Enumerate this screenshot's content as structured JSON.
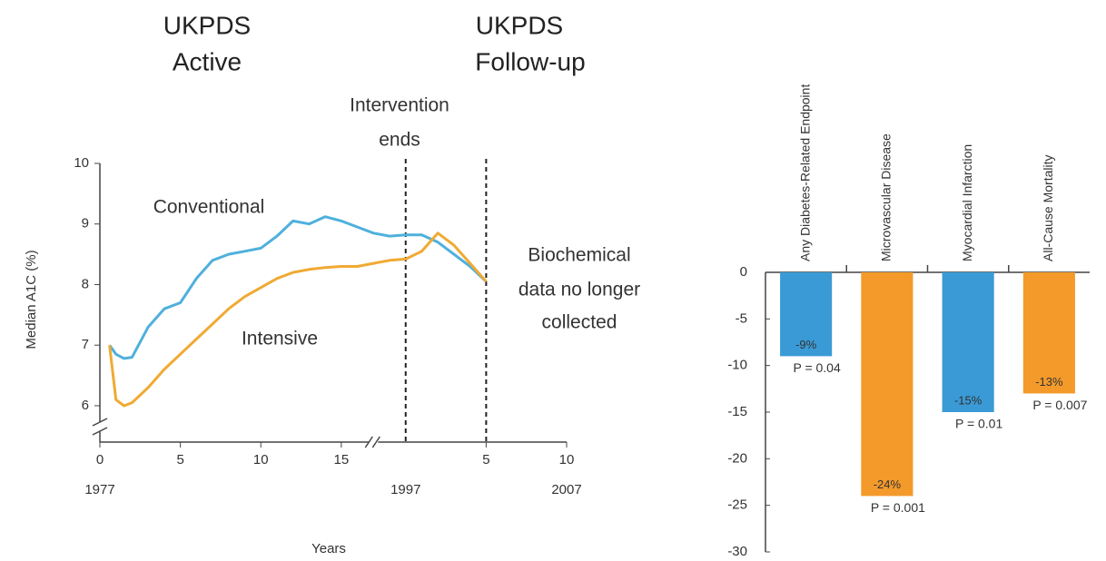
{
  "chart_data": [
    {
      "type": "line",
      "annotations": [
        [
          "UKPDS",
          "Active"
        ],
        [
          "UKPDS",
          "Follow-up"
        ],
        [
          "Intervention",
          "ends"
        ],
        [
          "Biochemical",
          "data no longer",
          "collected"
        ]
      ],
      "y_label": "Median A1C (%)",
      "x_label": "Years",
      "x": [
        0.6,
        1,
        1.5,
        2,
        3,
        4,
        5,
        6,
        7,
        8,
        9,
        10,
        11,
        12,
        13,
        14,
        15,
        16,
        17,
        18,
        19,
        20,
        21,
        22,
        23,
        24
      ],
      "series": [
        {
          "name": "Conventional",
          "color": "#4fb0dc",
          "values": [
            7.0,
            6.85,
            6.78,
            6.8,
            7.3,
            7.6,
            7.7,
            8.1,
            8.4,
            8.5,
            8.55,
            8.6,
            8.8,
            9.05,
            9.0,
            9.12,
            9.05,
            8.95,
            8.85,
            8.8,
            8.82,
            8.82,
            8.7,
            8.5,
            8.3,
            8.05
          ]
        },
        {
          "name": "Intensive",
          "color": "#f0aa33",
          "values": [
            7.0,
            6.1,
            6.0,
            6.05,
            6.3,
            6.6,
            6.85,
            7.1,
            7.35,
            7.6,
            7.8,
            7.95,
            8.1,
            8.2,
            8.25,
            8.28,
            8.3,
            8.3,
            8.35,
            8.4,
            8.42,
            8.55,
            8.85,
            8.65,
            8.35,
            8.05
          ]
        }
      ],
      "vlines": [
        19,
        24
      ],
      "xlim": [
        0,
        29
      ],
      "xticks": [
        0,
        5,
        10,
        15,
        {
          "value": 24,
          "label": "5"
        },
        {
          "value": 29,
          "label": "10"
        }
      ],
      "xticks_secondary": [
        {
          "value": 0,
          "label": "1977"
        },
        {
          "value": 19,
          "label": "1997"
        },
        {
          "value": 29,
          "label": "2007"
        }
      ],
      "ylim": [
        5.4,
        10
      ],
      "yticks": [
        6,
        7,
        8,
        9,
        10
      ]
    },
    {
      "type": "bar",
      "categories": [
        "Any Diabetes-Related Endpoint",
        "Microvascular Disease",
        "Myocardial Infarction",
        "All-Cause Mortality"
      ],
      "values": [
        -9,
        -24,
        -15,
        -13
      ],
      "value_labels": [
        "-9%",
        "-24%",
        "-15%",
        "-13%"
      ],
      "p_values": [
        "P = 0.04",
        "P = 0.001",
        "P = 0.01",
        "P = 0.007"
      ],
      "colors": [
        "#3a9ad6",
        "#f39a2b",
        "#3a9ad6",
        "#f39a2b"
      ],
      "ylim": [
        -30,
        0
      ],
      "yticks": [
        0,
        -5,
        -10,
        -15,
        -20,
        -25,
        -30
      ]
    }
  ]
}
